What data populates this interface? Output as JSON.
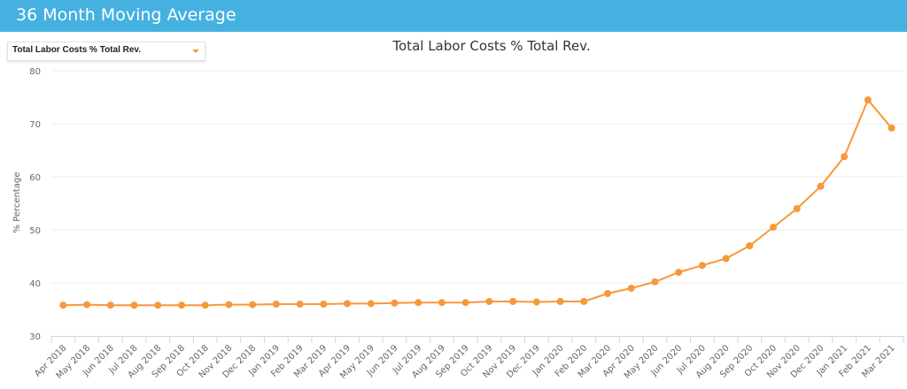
{
  "header": {
    "title": "36 Month Moving Average"
  },
  "selector": {
    "value": "Total Labor Costs % Total Rev.",
    "icon": "caret-down-icon"
  },
  "chart_data": {
    "type": "line",
    "title": "Total Labor Costs % Total Rev.",
    "xlabel": "",
    "ylabel": "% Percentage",
    "ylim": [
      30,
      80
    ],
    "yticks": [
      30,
      40,
      50,
      60,
      70,
      80
    ],
    "grid": true,
    "color": "#f7983a",
    "categories": [
      "Apr 2018",
      "May 2018",
      "Jun 2018",
      "Jul 2018",
      "Aug 2018",
      "Sep 2018",
      "Oct 2018",
      "Nov 2018",
      "Dec 2018",
      "Jan 2019",
      "Feb 2019",
      "Mar 2019",
      "Apr 2019",
      "May 2019",
      "Jun 2019",
      "Jul 2019",
      "Aug 2019",
      "Sep 2019",
      "Oct 2019",
      "Nov 2019",
      "Dec 2019",
      "Jan 2020",
      "Feb 2020",
      "Mar 2020",
      "Apr 2020",
      "May 2020",
      "Jun 2020",
      "Jul 2020",
      "Aug 2020",
      "Sep 2020",
      "Oct 2020",
      "Nov 2020",
      "Dec 2020",
      "Jan 2021",
      "Feb 2021",
      "Mar 2021"
    ],
    "values": [
      35.8,
      35.9,
      35.8,
      35.8,
      35.8,
      35.8,
      35.8,
      35.9,
      35.9,
      36.0,
      36.0,
      36.0,
      36.1,
      36.1,
      36.2,
      36.3,
      36.3,
      36.3,
      36.5,
      36.5,
      36.4,
      36.5,
      36.5,
      38.0,
      39.0,
      40.2,
      42.0,
      43.3,
      44.6,
      47.0,
      50.5,
      54.0,
      58.2,
      63.8,
      74.5,
      69.2
    ]
  }
}
